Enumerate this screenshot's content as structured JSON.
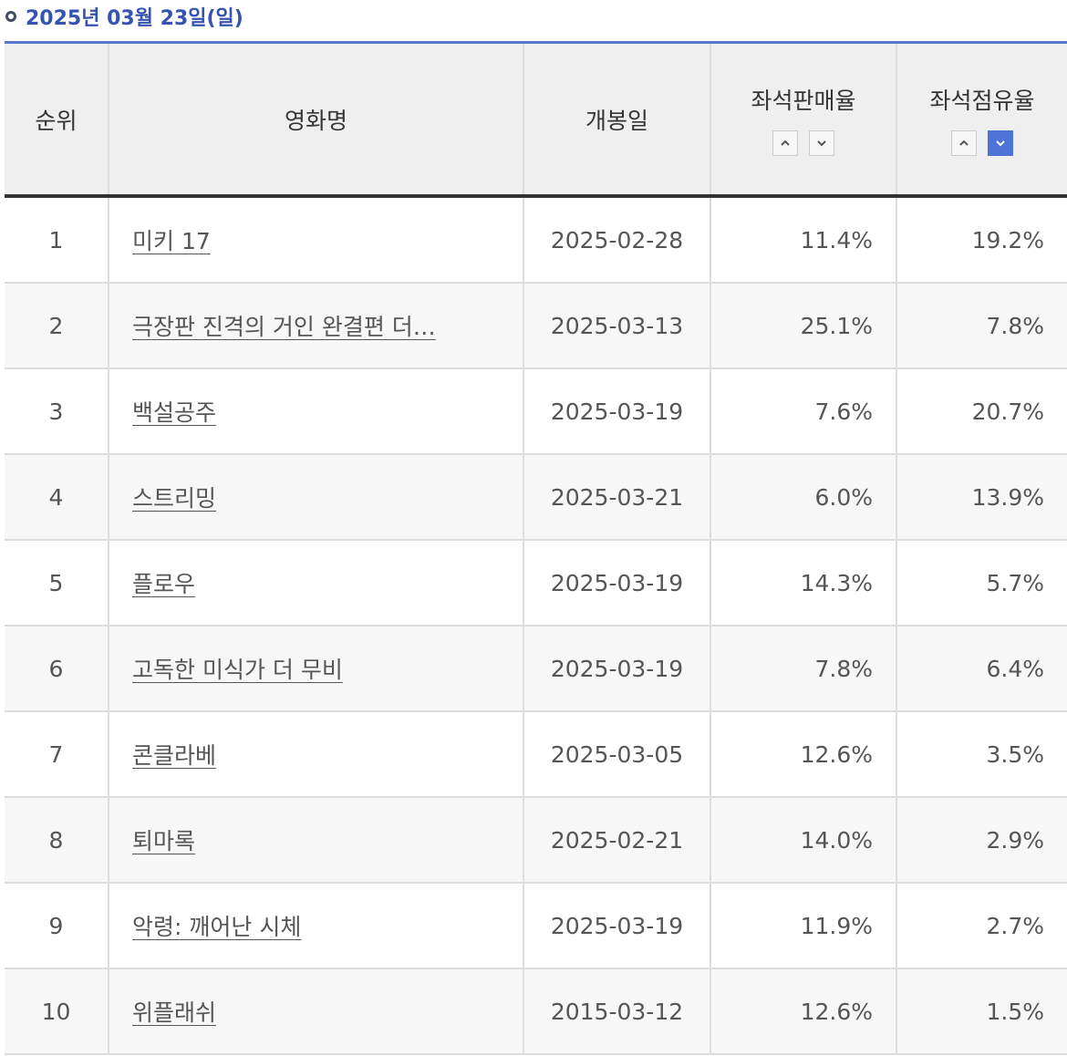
{
  "header": {
    "title": "2025년 03월 23일(일)"
  },
  "table": {
    "columns": [
      "순위",
      "영화명",
      "개봉일",
      "좌석판매율",
      "좌석점유율"
    ],
    "rows": [
      [
        "1",
        "미키 17",
        "2025-02-28",
        "11.4%",
        "19.2%"
      ],
      [
        "2",
        "극장판 진격의 거인 완결편 더…",
        "2025-03-13",
        "25.1%",
        "7.8%"
      ],
      [
        "3",
        "백설공주",
        "2025-03-19",
        "7.6%",
        "20.7%"
      ],
      [
        "4",
        "스트리밍",
        "2025-03-21",
        "6.0%",
        "13.9%"
      ],
      [
        "5",
        "플로우",
        "2025-03-19",
        "14.3%",
        "5.7%"
      ],
      [
        "6",
        "고독한 미식가 더 무비",
        "2025-03-19",
        "7.8%",
        "6.4%"
      ],
      [
        "7",
        "콘클라베",
        "2025-03-05",
        "12.6%",
        "3.5%"
      ],
      [
        "8",
        "퇴마록",
        "2025-02-21",
        "14.0%",
        "2.9%"
      ],
      [
        "9",
        "악령: 깨어난 시체",
        "2025-03-19",
        "11.9%",
        "2.7%"
      ],
      [
        "10",
        "위플래쉬",
        "2015-03-12",
        "12.6%",
        "1.5%"
      ]
    ]
  }
}
